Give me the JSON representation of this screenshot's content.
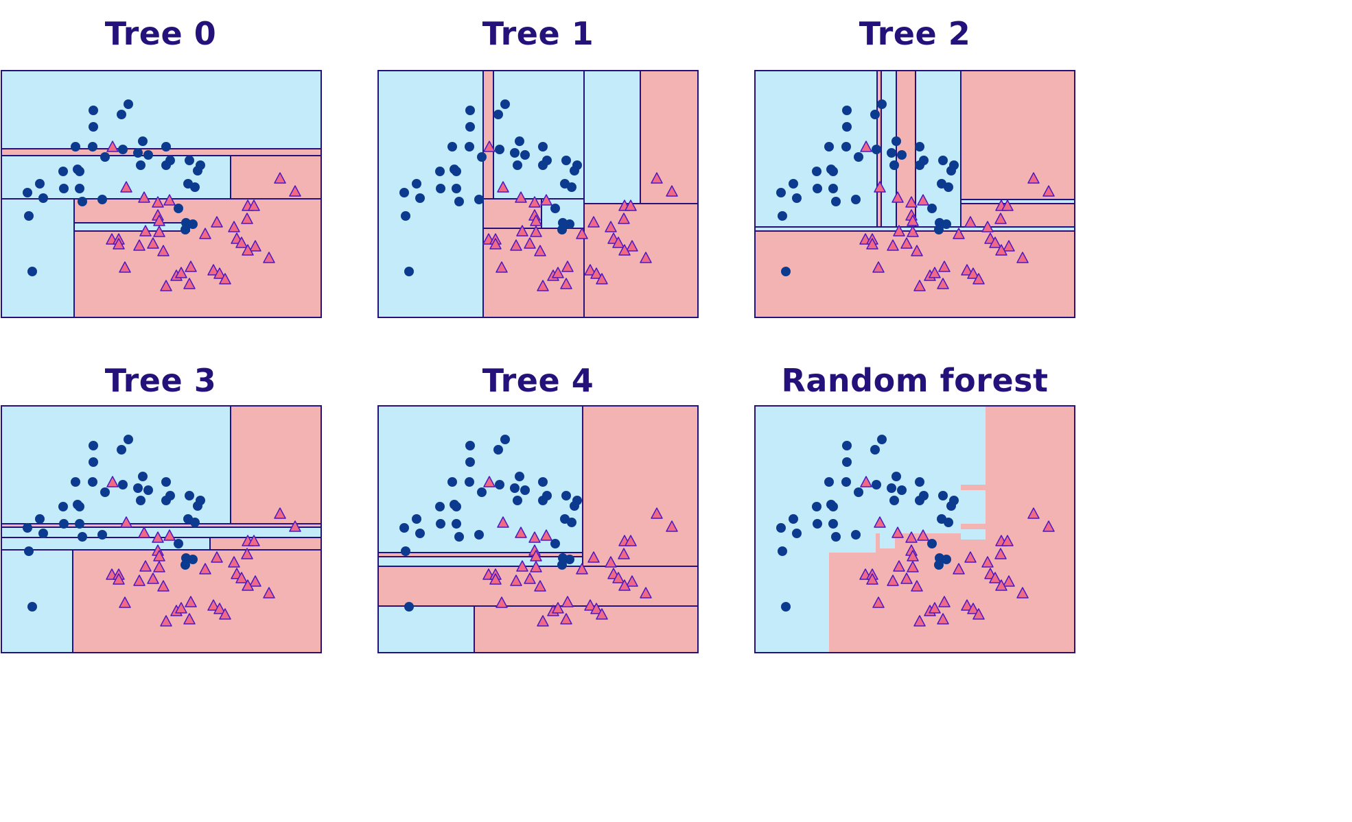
{
  "colors": {
    "region_circle": "#c3ebf9",
    "region_triangle": "#f4b3b3",
    "circle_marker": "#0b3a8f",
    "triangle_fill": "#f06a86",
    "triangle_edge": "#4b18c4",
    "frame": "#24127a",
    "title": "#24127a"
  },
  "chart_data": [
    {
      "type": "scatter",
      "title": "Tree 0",
      "xlim": [
        0,
        466
      ],
      "ylim": [
        0,
        360
      ],
      "xlabel": "",
      "ylabel": "",
      "regions": [
        {
          "x0": 0,
          "y0": 0,
          "x1": 466,
          "y1": 114,
          "cls": "circle"
        },
        {
          "x0": 0,
          "y0": 114,
          "x1": 466,
          "y1": 124,
          "cls": "triangle"
        },
        {
          "x0": 0,
          "y0": 124,
          "x1": 334,
          "y1": 187,
          "cls": "circle"
        },
        {
          "x0": 334,
          "y0": 124,
          "x1": 466,
          "y1": 187,
          "cls": "triangle"
        },
        {
          "x0": 0,
          "y0": 187,
          "x1": 106,
          "y1": 360,
          "cls": "circle"
        },
        {
          "x0": 106,
          "y0": 187,
          "x1": 466,
          "y1": 360,
          "cls": "triangle"
        },
        {
          "x0": 106,
          "y0": 222,
          "x1": 274,
          "y1": 234,
          "cls": "circle"
        }
      ]
    },
    {
      "type": "scatter",
      "title": "Tree 1",
      "xlim": [
        0,
        466
      ],
      "ylim": [
        0,
        360
      ],
      "xlabel": "",
      "ylabel": "",
      "regions": [
        {
          "x0": 0,
          "y0": 0,
          "x1": 153,
          "y1": 360,
          "cls": "circle"
        },
        {
          "x0": 153,
          "y0": 0,
          "x1": 168,
          "y1": 187,
          "cls": "triangle"
        },
        {
          "x0": 168,
          "y0": 0,
          "x1": 300,
          "y1": 187,
          "cls": "circle"
        },
        {
          "x0": 300,
          "y0": 0,
          "x1": 382,
          "y1": 194,
          "cls": "circle"
        },
        {
          "x0": 382,
          "y0": 0,
          "x1": 466,
          "y1": 194,
          "cls": "triangle"
        },
        {
          "x0": 153,
          "y0": 187,
          "x1": 238,
          "y1": 230,
          "cls": "triangle"
        },
        {
          "x0": 238,
          "y0": 187,
          "x1": 300,
          "y1": 230,
          "cls": "circle"
        },
        {
          "x0": 153,
          "y0": 230,
          "x1": 300,
          "y1": 360,
          "cls": "triangle"
        },
        {
          "x0": 300,
          "y0": 194,
          "x1": 466,
          "y1": 360,
          "cls": "triangle"
        }
      ]
    },
    {
      "type": "scatter",
      "title": "Tree 2",
      "xlim": [
        0,
        466
      ],
      "ylim": [
        0,
        360
      ],
      "xlabel": "",
      "ylabel": "",
      "regions": [
        {
          "x0": 0,
          "y0": 0,
          "x1": 178,
          "y1": 228,
          "cls": "circle"
        },
        {
          "x0": 178,
          "y0": 0,
          "x1": 184,
          "y1": 228,
          "cls": "triangle"
        },
        {
          "x0": 184,
          "y0": 0,
          "x1": 206,
          "y1": 228,
          "cls": "circle"
        },
        {
          "x0": 206,
          "y0": 0,
          "x1": 234,
          "y1": 228,
          "cls": "triangle"
        },
        {
          "x0": 234,
          "y0": 0,
          "x1": 300,
          "y1": 228,
          "cls": "circle"
        },
        {
          "x0": 300,
          "y0": 0,
          "x1": 466,
          "y1": 188,
          "cls": "triangle"
        },
        {
          "x0": 300,
          "y0": 188,
          "x1": 466,
          "y1": 194,
          "cls": "circle"
        },
        {
          "x0": 300,
          "y0": 194,
          "x1": 466,
          "y1": 228,
          "cls": "triangle"
        },
        {
          "x0": 0,
          "y0": 228,
          "x1": 466,
          "y1": 234,
          "cls": "circle"
        },
        {
          "x0": 0,
          "y0": 234,
          "x1": 466,
          "y1": 360,
          "cls": "triangle"
        }
      ]
    },
    {
      "type": "scatter",
      "title": "Tree 3",
      "xlim": [
        0,
        466
      ],
      "ylim": [
        0,
        360
      ],
      "xlabel": "",
      "ylabel": "",
      "regions": [
        {
          "x0": 0,
          "y0": 0,
          "x1": 334,
          "y1": 172,
          "cls": "circle"
        },
        {
          "x0": 334,
          "y0": 0,
          "x1": 466,
          "y1": 172,
          "cls": "triangle"
        },
        {
          "x0": 0,
          "y0": 172,
          "x1": 466,
          "y1": 177,
          "cls": "triangle"
        },
        {
          "x0": 0,
          "y0": 177,
          "x1": 466,
          "y1": 192,
          "cls": "circle"
        },
        {
          "x0": 0,
          "y0": 192,
          "x1": 304,
          "y1": 210,
          "cls": "circle"
        },
        {
          "x0": 304,
          "y0": 192,
          "x1": 466,
          "y1": 210,
          "cls": "triangle"
        },
        {
          "x0": 0,
          "y0": 210,
          "x1": 104,
          "y1": 360,
          "cls": "circle"
        },
        {
          "x0": 104,
          "y0": 210,
          "x1": 466,
          "y1": 360,
          "cls": "triangle"
        }
      ]
    },
    {
      "type": "scatter",
      "title": "Tree 4",
      "xlim": [
        0,
        466
      ],
      "ylim": [
        0,
        360
      ],
      "xlabel": "",
      "ylabel": "",
      "regions": [
        {
          "x0": 0,
          "y0": 0,
          "x1": 298,
          "y1": 214,
          "cls": "circle"
        },
        {
          "x0": 298,
          "y0": 0,
          "x1": 466,
          "y1": 234,
          "cls": "triangle"
        },
        {
          "x0": 0,
          "y0": 214,
          "x1": 298,
          "y1": 220,
          "cls": "triangle"
        },
        {
          "x0": 0,
          "y0": 220,
          "x1": 298,
          "y1": 234,
          "cls": "circle"
        },
        {
          "x0": 0,
          "y0": 234,
          "x1": 466,
          "y1": 292,
          "cls": "triangle"
        },
        {
          "x0": 0,
          "y0": 292,
          "x1": 140,
          "y1": 360,
          "cls": "circle"
        },
        {
          "x0": 140,
          "y0": 292,
          "x1": 466,
          "y1": 360,
          "cls": "triangle"
        }
      ]
    },
    {
      "type": "scatter",
      "title": "Random forest",
      "xlim": [
        0,
        466
      ],
      "ylim": [
        0,
        360
      ],
      "xlabel": "",
      "ylabel": "",
      "regions": [
        {
          "x0": 0,
          "y0": 0,
          "x1": 466,
          "y1": 360,
          "cls": "circle"
        },
        {
          "x0": 336,
          "y0": 0,
          "x1": 466,
          "y1": 360,
          "cls": "triangle"
        },
        {
          "x0": 300,
          "y0": 115,
          "x1": 336,
          "y1": 123,
          "cls": "triangle"
        },
        {
          "x0": 300,
          "y0": 172,
          "x1": 336,
          "y1": 180,
          "cls": "triangle"
        },
        {
          "x0": 300,
          "y0": 195,
          "x1": 336,
          "y1": 225,
          "cls": "triangle"
        },
        {
          "x0": 176,
          "y0": 186,
          "x1": 300,
          "y1": 214,
          "cls": "triangle"
        },
        {
          "x0": 108,
          "y0": 214,
          "x1": 336,
          "y1": 222,
          "cls": "triangle"
        },
        {
          "x0": 108,
          "y0": 222,
          "x1": 336,
          "y1": 360,
          "cls": "triangle"
        },
        {
          "x0": 182,
          "y0": 186,
          "x1": 204,
          "y1": 208,
          "cls": "circle"
        }
      ],
      "outline_regions": false
    }
  ],
  "scatter_points": {
    "circle": [
      [
        134,
        58
      ],
      [
        134,
        82
      ],
      [
        175,
        64
      ],
      [
        185,
        49
      ],
      [
        108,
        111
      ],
      [
        133,
        111
      ],
      [
        151,
        126
      ],
      [
        177,
        115
      ],
      [
        203,
        138
      ],
      [
        199,
        120
      ],
      [
        206,
        103
      ],
      [
        240,
        111
      ],
      [
        240,
        138
      ],
      [
        246,
        131
      ],
      [
        274,
        131
      ],
      [
        290,
        138
      ],
      [
        286,
        146
      ],
      [
        90,
        147
      ],
      [
        111,
        144
      ],
      [
        114,
        147
      ],
      [
        91,
        172
      ],
      [
        114,
        172
      ],
      [
        56,
        165
      ],
      [
        38,
        178
      ],
      [
        61,
        186
      ],
      [
        118,
        191
      ],
      [
        147,
        188
      ],
      [
        214,
        123
      ],
      [
        272,
        165
      ],
      [
        282,
        170
      ],
      [
        258,
        201
      ],
      [
        269,
        222
      ],
      [
        279,
        224
      ],
      [
        268,
        232
      ],
      [
        40,
        212
      ],
      [
        45,
        293
      ]
    ],
    "triangle": [
      [
        162,
        112
      ],
      [
        182,
        171
      ],
      [
        406,
        158
      ],
      [
        428,
        177
      ],
      [
        208,
        186
      ],
      [
        228,
        193
      ],
      [
        245,
        190
      ],
      [
        228,
        212
      ],
      [
        230,
        220
      ],
      [
        359,
        198
      ],
      [
        368,
        198
      ],
      [
        358,
        217
      ],
      [
        314,
        222
      ],
      [
        339,
        229
      ],
      [
        210,
        235
      ],
      [
        230,
        236
      ],
      [
        297,
        239
      ],
      [
        161,
        247
      ],
      [
        171,
        247
      ],
      [
        171,
        254
      ],
      [
        201,
        256
      ],
      [
        221,
        253
      ],
      [
        236,
        264
      ],
      [
        343,
        246
      ],
      [
        350,
        252
      ],
      [
        370,
        257
      ],
      [
        359,
        263
      ],
      [
        390,
        274
      ],
      [
        180,
        288
      ],
      [
        276,
        287
      ],
      [
        255,
        300
      ],
      [
        262,
        296
      ],
      [
        309,
        292
      ],
      [
        318,
        297
      ],
      [
        326,
        305
      ],
      [
        240,
        315
      ],
      [
        274,
        312
      ]
    ]
  },
  "panels": [
    {
      "title": "Tree 0"
    },
    {
      "title": "Tree 1"
    },
    {
      "title": "Tree 2"
    },
    {
      "title": "Tree 3"
    },
    {
      "title": "Tree 4"
    },
    {
      "title": "Random forest"
    }
  ]
}
